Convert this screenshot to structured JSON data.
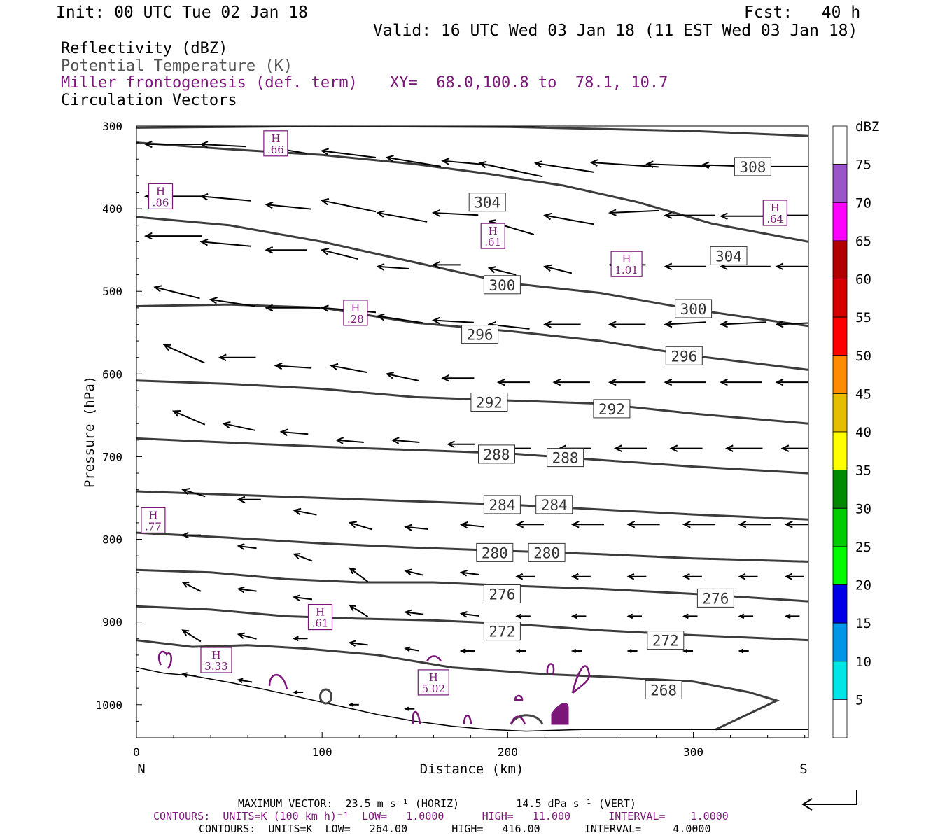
{
  "header": {
    "init": "Init: 00 UTC Tue 02 Jan 18",
    "fcst": "Fcst:   40 h",
    "valid": "Valid: 16 UTC Wed 03 Jan 18 (11 EST Wed 03 Jan 18)",
    "field1": "Reflectivity (dBZ)",
    "field2": "Potential Temperature (K)",
    "field3": "Miller frontogenesis (def. term)",
    "xy": "XY=  68.0,100.8 to  78.1, 10.7",
    "field4": "Circulation Vectors"
  },
  "footer": {
    "max_vector": "MAXIMUM VECTOR:  23.5 m s⁻¹ (HORIZ)         14.5 dPa s⁻¹ (VERT)",
    "contours_purple": "CONTOURS:  UNITS=K (100 km h)⁻¹  LOW=   1.0000      HIGH=   11.000      INTERVAL=    1.0000",
    "contours_black": "CONTOURS:  UNITS=K  LOW=   264.00       HIGH=   416.00       INTERVAL=     4.0000"
  },
  "colors": {
    "purple": "#7a1778",
    "theta": "#3c3c3c"
  },
  "chart_data": {
    "type": "cross-section",
    "xlabel": "Distance (km)",
    "ylabel": "Pressure (hPa)",
    "xlim": [
      0,
      362
    ],
    "ylim": [
      1040,
      300
    ],
    "x_ticks": [
      0,
      100,
      200,
      300
    ],
    "y_ticks": [
      300,
      400,
      500,
      600,
      700,
      800,
      900,
      1000
    ],
    "left_end": "N",
    "right_end": "S",
    "colorbar": {
      "title": "dBZ",
      "labels": [
        "5",
        "10",
        "15",
        "20",
        "25",
        "30",
        "35",
        "40",
        "45",
        "50",
        "55",
        "60",
        "65",
        "70",
        "75"
      ],
      "colors": [
        "#ffffff",
        "#00e5e5",
        "#0096e8",
        "#0000e6",
        "#00fa00",
        "#00cc00",
        "#008a00",
        "#ffff00",
        "#e6be00",
        "#ff8c00",
        "#ff0000",
        "#d40000",
        "#b00000",
        "#ff00ff",
        "#9a55c8",
        "#ffffff"
      ]
    },
    "theta_contours": [
      {
        "value": "304",
        "points": [
          [
            0,
            320
          ],
          [
            50,
            328
          ],
          [
            100,
            335
          ],
          [
            150,
            346
          ],
          [
            190,
            358
          ],
          [
            230,
            372
          ],
          [
            270,
            392
          ],
          [
            310,
            418
          ],
          [
            362,
            440
          ]
        ]
      },
      {
        "value": "300",
        "points": [
          [
            0,
            410
          ],
          [
            50,
            420
          ],
          [
            100,
            440
          ],
          [
            150,
            465
          ],
          [
            200,
            490
          ],
          [
            250,
            502
          ],
          [
            300,
            522
          ],
          [
            362,
            542
          ]
        ]
      },
      {
        "value": "296",
        "points": [
          [
            0,
            518
          ],
          [
            50,
            516
          ],
          [
            100,
            520
          ],
          [
            150,
            538
          ],
          [
            200,
            548
          ],
          [
            250,
            560
          ],
          [
            300,
            578
          ],
          [
            362,
            595
          ]
        ]
      },
      {
        "value": "292",
        "points": [
          [
            0,
            608
          ],
          [
            50,
            612
          ],
          [
            100,
            618
          ],
          [
            150,
            628
          ],
          [
            200,
            632
          ],
          [
            250,
            636
          ],
          [
            300,
            648
          ],
          [
            362,
            660
          ]
        ]
      },
      {
        "value": "288",
        "points": [
          [
            0,
            678
          ],
          [
            50,
            683
          ],
          [
            100,
            688
          ],
          [
            150,
            692
          ],
          [
            200,
            696
          ],
          [
            250,
            704
          ],
          [
            300,
            712
          ],
          [
            362,
            720
          ]
        ]
      },
      {
        "value": "284",
        "points": [
          [
            0,
            742
          ],
          [
            50,
            746
          ],
          [
            100,
            750
          ],
          [
            150,
            754
          ],
          [
            200,
            758
          ],
          [
            250,
            764
          ],
          [
            300,
            770
          ],
          [
            362,
            776
          ]
        ]
      },
      {
        "value": "280",
        "points": [
          [
            0,
            792
          ],
          [
            50,
            798
          ],
          [
            100,
            805
          ],
          [
            150,
            810
          ],
          [
            200,
            814
          ],
          [
            250,
            818
          ],
          [
            300,
            823
          ],
          [
            362,
            827
          ]
        ]
      },
      {
        "value": "276",
        "points": [
          [
            0,
            837
          ],
          [
            40,
            840
          ],
          [
            80,
            848
          ],
          [
            120,
            852
          ],
          [
            160,
            852
          ],
          [
            200,
            856
          ],
          [
            250,
            860
          ],
          [
            300,
            866
          ],
          [
            362,
            875
          ]
        ]
      },
      {
        "value": "272",
        "points": [
          [
            0,
            881
          ],
          [
            40,
            885
          ],
          [
            80,
            893
          ],
          [
            120,
            896
          ],
          [
            160,
            898
          ],
          [
            200,
            902
          ],
          [
            250,
            910
          ],
          [
            300,
            916
          ],
          [
            362,
            922
          ]
        ]
      },
      {
        "value": "268",
        "points": [
          [
            0,
            922
          ],
          [
            30,
            930
          ],
          [
            60,
            928
          ],
          [
            90,
            932
          ],
          [
            130,
            940
          ],
          [
            170,
            955
          ],
          [
            220,
            963
          ],
          [
            260,
            967
          ],
          [
            300,
            972
          ],
          [
            330,
            985
          ],
          [
            345,
            995
          ],
          [
            312,
            1030
          ]
        ]
      },
      {
        "value": "308",
        "points": [
          [
            0,
            302
          ],
          [
            100,
            300
          ],
          [
            200,
            301
          ],
          [
            300,
            306
          ],
          [
            362,
            312
          ]
        ]
      }
    ],
    "theta_labels": [
      {
        "text": "308",
        "x": 332,
        "p": 349
      },
      {
        "text": "304",
        "x": 189,
        "p": 392
      },
      {
        "text": "304",
        "x": 319,
        "p": 457
      },
      {
        "text": "300",
        "x": 197,
        "p": 492
      },
      {
        "text": "300",
        "x": 300,
        "p": 521
      },
      {
        "text": "296",
        "x": 185,
        "p": 552
      },
      {
        "text": "296",
        "x": 295,
        "p": 578
      },
      {
        "text": "292",
        "x": 190,
        "p": 634
      },
      {
        "text": "292",
        "x": 256,
        "p": 642
      },
      {
        "text": "288",
        "x": 194,
        "p": 697
      },
      {
        "text": "288",
        "x": 231,
        "p": 701
      },
      {
        "text": "284",
        "x": 197,
        "p": 758
      },
      {
        "text": "284",
        "x": 225,
        "p": 758
      },
      {
        "text": "280",
        "x": 193,
        "p": 816
      },
      {
        "text": "280",
        "x": 221,
        "p": 816
      },
      {
        "text": "276",
        "x": 197,
        "p": 866
      },
      {
        "text": "276",
        "x": 312,
        "p": 871
      },
      {
        "text": "272",
        "x": 197,
        "p": 911
      },
      {
        "text": "272",
        "x": 285,
        "p": 922
      },
      {
        "text": "268",
        "x": 284,
        "p": 982
      }
    ],
    "frontogenesis_maxima": [
      {
        "label": "H",
        "value": ".66",
        "x": 75,
        "p": 321
      },
      {
        "label": "H",
        "value": ".86",
        "x": 13,
        "p": 385
      },
      {
        "label": "H",
        "value": ".64",
        "x": 344,
        "p": 405
      },
      {
        "label": "H",
        "value": ".61",
        "x": 192,
        "p": 433
      },
      {
        "label": "H",
        "value": "1.01",
        "x": 264,
        "p": 467
      },
      {
        "label": "H",
        "value": ".28",
        "x": 118,
        "p": 526
      },
      {
        "label": "H",
        "value": ".77",
        "x": 9,
        "p": 777
      },
      {
        "label": "H",
        "value": ".61",
        "x": 99,
        "p": 894
      },
      {
        "label": "H",
        "value": "3.33",
        "x": 43,
        "p": 946
      },
      {
        "label": "H",
        "value": "5.02",
        "x": 160,
        "p": 973
      }
    ],
    "vector_rows_hpa": [
      320,
      340,
      365,
      385,
      400,
      415,
      420,
      430,
      445,
      455,
      470,
      495,
      505,
      525,
      540,
      555,
      580,
      600,
      620,
      640,
      650,
      670,
      700,
      740,
      760,
      780,
      800,
      820,
      840,
      860,
      890,
      910,
      960
    ]
  },
  "vectors": [
    [
      5,
      322,
      25,
      0
    ],
    [
      35,
      322,
      20,
      -1
    ],
    [
      70,
      325,
      18,
      -3
    ],
    [
      100,
      330,
      24,
      -3
    ],
    [
      135,
      338,
      24,
      -4
    ],
    [
      165,
      342,
      22,
      -2
    ],
    [
      185,
      345,
      28,
      -6
    ],
    [
      215,
      345,
      26,
      -4
    ],
    [
      245,
      344,
      30,
      -2
    ],
    [
      275,
      346,
      28,
      -1
    ],
    [
      305,
      347,
      30,
      -1
    ],
    [
      335,
      349,
      35,
      0
    ],
    [
      5,
      385,
      25,
      0
    ],
    [
      35,
      385,
      22,
      -2
    ],
    [
      70,
      395,
      20,
      -2
    ],
    [
      100,
      390,
      24,
      -5
    ],
    [
      130,
      405,
      22,
      -4
    ],
    [
      160,
      405,
      20,
      -1
    ],
    [
      190,
      415,
      20,
      -6
    ],
    [
      220,
      408,
      22,
      -4
    ],
    [
      255,
      405,
      22,
      1
    ],
    [
      285,
      408,
      22,
      0
    ],
    [
      315,
      409,
      20,
      0
    ],
    [
      345,
      408,
      22,
      0
    ],
    [
      5,
      433,
      25,
      0
    ],
    [
      35,
      440,
      22,
      -2
    ],
    [
      70,
      450,
      18,
      0
    ],
    [
      100,
      450,
      16,
      -4
    ],
    [
      130,
      470,
      14,
      -1
    ],
    [
      160,
      468,
      12,
      0
    ],
    [
      190,
      472,
      12,
      -3
    ],
    [
      220,
      470,
      12,
      -3
    ],
    [
      255,
      468,
      16,
      0
    ],
    [
      285,
      470,
      18,
      0
    ],
    [
      315,
      470,
      22,
      0
    ],
    [
      345,
      470,
      22,
      0
    ],
    [
      10,
      495,
      20,
      -5
    ],
    [
      40,
      510,
      20,
      -3
    ],
    [
      70,
      520,
      24,
      0
    ],
    [
      100,
      520,
      24,
      -2
    ],
    [
      130,
      530,
      20,
      -3
    ],
    [
      160,
      535,
      18,
      -1
    ],
    [
      190,
      540,
      18,
      -2
    ],
    [
      220,
      540,
      16,
      0
    ],
    [
      255,
      540,
      16,
      0
    ],
    [
      285,
      540,
      18,
      1
    ],
    [
      315,
      540,
      20,
      1
    ],
    [
      345,
      540,
      22,
      1
    ],
    [
      15,
      565,
      18,
      -8
    ],
    [
      45,
      580,
      16,
      0
    ],
    [
      75,
      590,
      16,
      -1
    ],
    [
      105,
      590,
      16,
      -3
    ],
    [
      135,
      600,
      14,
      -3
    ],
    [
      165,
      605,
      14,
      0
    ],
    [
      195,
      610,
      14,
      0
    ],
    [
      225,
      610,
      16,
      0
    ],
    [
      255,
      610,
      16,
      0
    ],
    [
      285,
      610,
      18,
      0
    ],
    [
      315,
      610,
      18,
      0
    ],
    [
      345,
      610,
      18,
      0
    ],
    [
      20,
      645,
      14,
      -6
    ],
    [
      47,
      660,
      14,
      -3
    ],
    [
      78,
      670,
      12,
      -1
    ],
    [
      108,
      680,
      12,
      -1
    ],
    [
      138,
      680,
      12,
      -1
    ],
    [
      168,
      685,
      12,
      0
    ],
    [
      198,
      690,
      12,
      0
    ],
    [
      228,
      690,
      14,
      0
    ],
    [
      258,
      690,
      14,
      0
    ],
    [
      288,
      690,
      14,
      0
    ],
    [
      318,
      690,
      16,
      0
    ],
    [
      348,
      690,
      16,
      0
    ],
    [
      25,
      740,
      10,
      -3
    ],
    [
      55,
      752,
      10,
      0
    ],
    [
      85,
      765,
      10,
      -2
    ],
    [
      115,
      780,
      10,
      -3
    ],
    [
      145,
      785,
      10,
      -1
    ],
    [
      175,
      782,
      10,
      -1
    ],
    [
      205,
      782,
      12,
      0
    ],
    [
      235,
      782,
      14,
      0
    ],
    [
      265,
      782,
      14,
      0
    ],
    [
      295,
      782,
      14,
      0
    ],
    [
      325,
      782,
      14,
      0
    ],
    [
      350,
      782,
      16,
      0
    ],
    [
      25,
      795,
      8,
      0
    ],
    [
      55,
      808,
      8,
      -1
    ],
    [
      85,
      818,
      8,
      -3
    ],
    [
      115,
      835,
      8,
      -6
    ],
    [
      145,
      838,
      8,
      -2
    ],
    [
      175,
      840,
      8,
      -1
    ],
    [
      205,
      845,
      8,
      0
    ],
    [
      235,
      845,
      8,
      0
    ],
    [
      265,
      845,
      8,
      0
    ],
    [
      295,
      845,
      8,
      0
    ],
    [
      325,
      845,
      8,
      0
    ],
    [
      350,
      845,
      8,
      0
    ],
    [
      25,
      852,
      8,
      -4
    ],
    [
      55,
      860,
      8,
      -1
    ],
    [
      85,
      870,
      8,
      -1
    ],
    [
      115,
      880,
      8,
      -5
    ],
    [
      145,
      888,
      8,
      -1
    ],
    [
      175,
      890,
      8,
      -1
    ],
    [
      205,
      893,
      6,
      0
    ],
    [
      235,
      893,
      6,
      0
    ],
    [
      265,
      893,
      6,
      0
    ],
    [
      295,
      893,
      6,
      0
    ],
    [
      325,
      893,
      6,
      0
    ],
    [
      350,
      893,
      6,
      0
    ],
    [
      25,
      910,
      8,
      -5
    ],
    [
      55,
      915,
      8,
      -2
    ],
    [
      85,
      920,
      6,
      0
    ],
    [
      115,
      925,
      8,
      -1
    ],
    [
      145,
      932,
      6,
      -1
    ],
    [
      175,
      935,
      6,
      0
    ],
    [
      205,
      935,
      4,
      0
    ],
    [
      235,
      935,
      4,
      0
    ],
    [
      265,
      935,
      4,
      0
    ],
    [
      295,
      935,
      4,
      0
    ],
    [
      325,
      935,
      4,
      0
    ],
    [
      25,
      963,
      6,
      -1
    ],
    [
      55,
      970,
      6,
      -1
    ],
    [
      85,
      985,
      4,
      0
    ],
    [
      115,
      1000,
      4,
      0
    ],
    [
      145,
      1005,
      4,
      0
    ]
  ]
}
